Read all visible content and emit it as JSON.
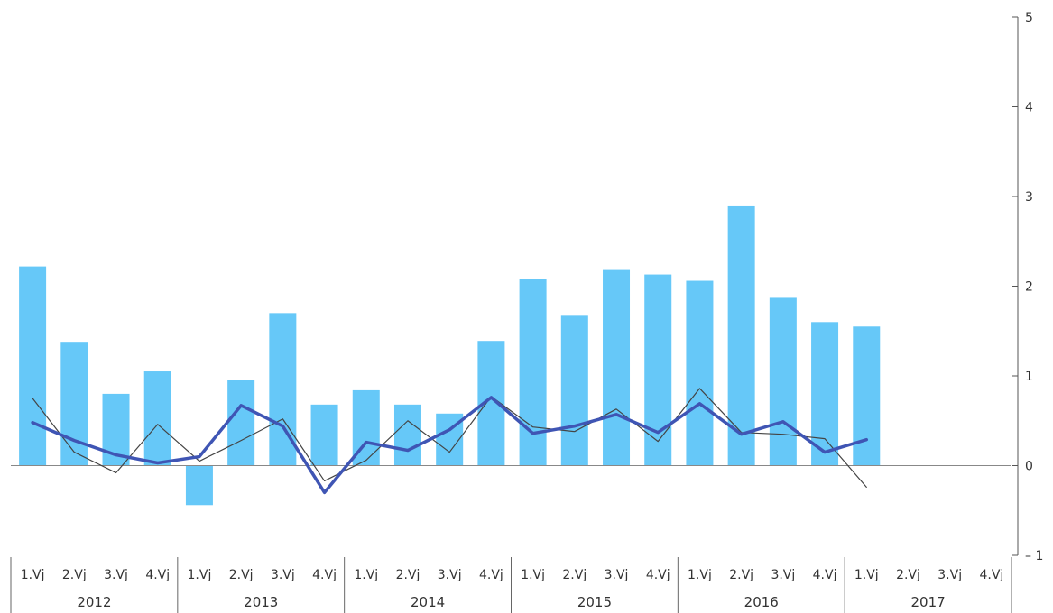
{
  "chart_data": {
    "type": "bar",
    "title": "",
    "xlabel": "",
    "ylabel": "",
    "ylim": [
      -1,
      5
    ],
    "y_ticks": [
      "5",
      "4",
      "3",
      "2",
      "1",
      "0",
      "– 1"
    ],
    "y_tick_values": [
      5,
      4,
      3,
      2,
      1,
      0,
      -1
    ],
    "y_axis_side": "right",
    "grid": false,
    "legend": "none",
    "categories": [
      "1.Vj",
      "2.Vj",
      "3.Vj",
      "4.Vj",
      "1.Vj",
      "2.Vj",
      "3.Vj",
      "4.Vj",
      "1.Vj",
      "2.Vj",
      "3.Vj",
      "4.Vj",
      "1.Vj",
      "2.Vj",
      "3.Vj",
      "4.Vj",
      "1.Vj",
      "2.Vj",
      "3.Vj",
      "4.Vj",
      "1.Vj",
      "2.Vj",
      "3.Vj",
      "4.Vj"
    ],
    "groups": [
      "2012",
      "2013",
      "2014",
      "2015",
      "2016",
      "2017"
    ],
    "group_size": 4,
    "series": [
      {
        "kind": "bar",
        "color": "#66c8f8",
        "values": [
          2.22,
          1.38,
          0.8,
          1.05,
          -0.44,
          0.95,
          1.7,
          0.68,
          0.84,
          0.68,
          0.58,
          1.39,
          2.08,
          1.68,
          2.19,
          2.13,
          2.06,
          2.9,
          1.87,
          1.6,
          1.55,
          null,
          null,
          null
        ]
      },
      {
        "kind": "line",
        "color": "#3f55b4",
        "width": "thick",
        "values": [
          0.48,
          0.28,
          0.12,
          0.03,
          0.1,
          0.67,
          0.44,
          -0.3,
          0.26,
          0.17,
          0.4,
          0.76,
          0.36,
          0.44,
          0.57,
          0.37,
          0.69,
          0.35,
          0.49,
          0.15,
          0.29,
          null,
          null,
          null
        ]
      },
      {
        "kind": "line",
        "color": "#444444",
        "width": "thin",
        "values": [
          0.75,
          0.15,
          -0.08,
          0.46,
          0.05,
          0.28,
          0.52,
          -0.17,
          0.06,
          0.5,
          0.15,
          0.77,
          0.43,
          0.38,
          0.63,
          0.27,
          0.86,
          0.37,
          0.35,
          0.3,
          -0.24,
          null,
          null,
          null
        ]
      }
    ]
  }
}
